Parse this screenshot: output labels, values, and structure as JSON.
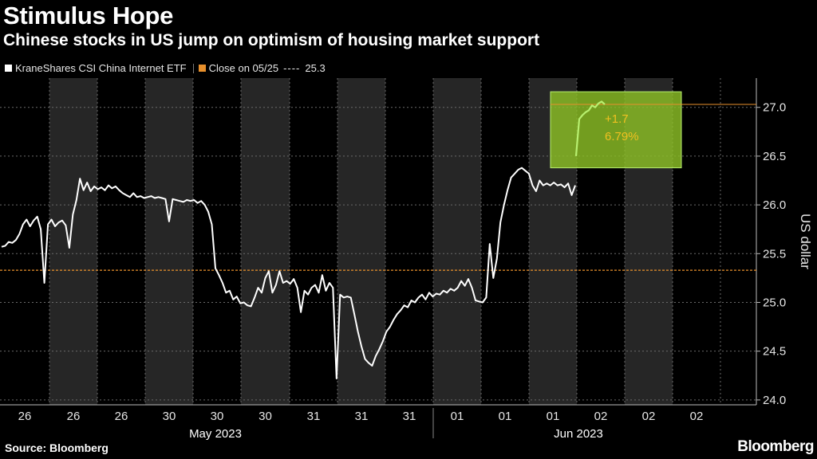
{
  "header": {
    "title": "Stimulus Hope",
    "subtitle": "Chinese stocks in US jump on optimism of housing market support"
  },
  "legend": {
    "series_label": "KraneShares CSI China Internet ETF",
    "close_label": "Close on 05/25",
    "close_value": "25.3"
  },
  "footer": {
    "source": "Source: Bloomberg",
    "brand": "Bloomberg"
  },
  "colors": {
    "background": "#000000",
    "line": "#ffffff",
    "reference": "#e8902c",
    "highlight_fill": "#8cbf26",
    "highlight_line": "#b8f070",
    "annotation": "#f0c020",
    "shading": "#262626"
  },
  "chart_data": {
    "type": "line",
    "title": "Stimulus Hope",
    "subtitle": "Chinese stocks in US jump on optimism of housing market support",
    "ylabel": "US dollar",
    "ylim": [
      23.95,
      27.3
    ],
    "yticks": [
      24.0,
      24.5,
      25.0,
      25.5,
      26.0,
      26.5,
      27.0
    ],
    "ytick_labels": [
      "24.0",
      "24.5",
      "25.0",
      "25.5",
      "26.0",
      "26.5",
      "27.0"
    ],
    "xtick_labels": [
      "26",
      "26",
      "26",
      "30",
      "30",
      "30",
      "31",
      "31",
      "31",
      "01",
      "01",
      "01",
      "02",
      "02",
      "02"
    ],
    "month_labels": [
      "May 2023",
      "Jun 2023"
    ],
    "grid": true,
    "legend_position": "top-left",
    "reference_line": {
      "label": "Close on 05/25",
      "value": 25.33
    },
    "annotation": {
      "change": "+1.7",
      "percent": "6.79%"
    },
    "highlight_range": {
      "ylow": 26.38,
      "yhigh": 27.16
    },
    "series": [
      {
        "name": "KraneShares CSI China Internet ETF",
        "values": [
          25.57,
          25.58,
          25.62,
          25.61,
          25.64,
          25.7,
          25.8,
          25.85,
          25.78,
          25.84,
          25.88,
          25.75,
          25.2,
          25.8,
          25.85,
          25.78,
          25.82,
          25.84,
          25.79,
          25.56,
          25.9,
          26.05,
          26.27,
          26.15,
          26.23,
          26.14,
          26.19,
          26.16,
          26.18,
          26.15,
          26.2,
          26.17,
          26.19,
          26.15,
          26.12,
          26.1,
          26.08,
          26.12,
          26.08,
          26.09,
          26.07,
          26.08,
          26.09,
          26.07,
          26.08,
          26.07,
          26.06,
          25.83,
          26.06,
          26.05,
          26.04,
          26.03,
          26.05,
          26.04,
          26.05,
          26.02,
          26.04,
          26.0,
          25.93,
          25.8,
          25.35,
          25.28,
          25.2,
          25.1,
          25.12,
          25.03,
          25.06,
          24.99,
          25.0,
          24.97,
          24.96,
          25.05,
          25.15,
          25.1,
          25.25,
          25.32,
          25.1,
          25.18,
          25.32,
          25.2,
          25.22,
          25.19,
          25.24,
          25.15,
          24.9,
          25.12,
          25.08,
          25.15,
          25.18,
          25.1,
          25.28,
          25.12,
          25.2,
          25.15,
          24.22,
          25.08,
          25.05,
          25.06,
          25.05,
          24.88,
          24.7,
          24.55,
          24.42,
          24.38,
          24.35,
          24.45,
          24.52,
          24.6,
          24.7,
          24.75,
          24.82,
          24.88,
          24.92,
          24.97,
          24.95,
          25.02,
          25.0,
          25.05,
          25.08,
          25.03,
          25.1,
          25.06,
          25.09,
          25.08,
          25.12,
          25.1,
          25.14,
          25.12,
          25.15,
          25.22,
          25.17,
          25.24,
          25.15,
          25.02,
          25.01,
          25.0,
          25.05,
          25.6,
          25.25,
          25.45,
          25.82,
          26.0,
          26.15,
          26.28,
          26.32,
          26.36,
          26.38,
          26.35,
          26.32,
          26.2,
          26.14,
          26.25,
          26.2,
          26.22,
          26.2,
          26.23,
          26.2,
          26.21,
          26.18,
          26.22,
          26.1,
          26.2,
          26.5,
          26.88,
          26.92,
          26.95,
          26.97,
          27.02,
          27.0,
          27.04,
          27.06,
          27.03
        ]
      }
    ]
  }
}
